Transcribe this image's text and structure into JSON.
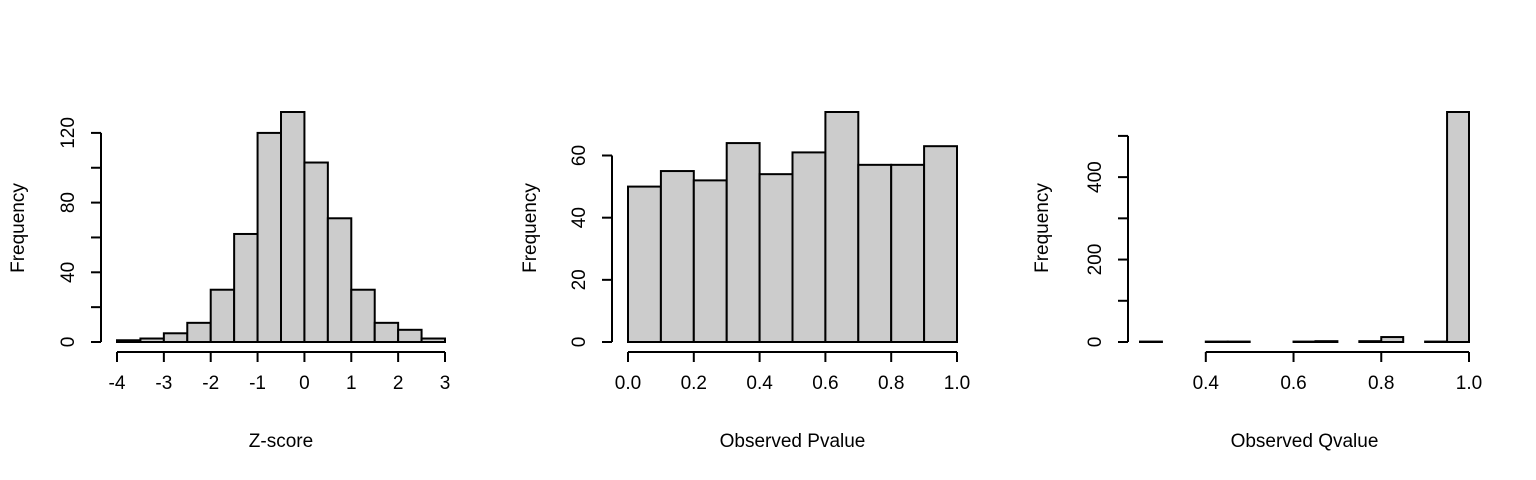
{
  "chart_data": [
    {
      "type": "bar",
      "title": "",
      "xlabel": "Z-score",
      "ylabel": "Frequency",
      "bin_edges": [
        -4,
        -3.5,
        -3,
        -2.5,
        -2,
        -1.5,
        -1,
        -0.5,
        0,
        0.5,
        1,
        1.5,
        2,
        2.5,
        3
      ],
      "values": [
        1,
        2,
        5,
        11,
        30,
        62,
        120,
        132,
        103,
        71,
        30,
        11,
        7,
        2
      ],
      "xlim": [
        -4,
        3
      ],
      "ylim": [
        0,
        132
      ],
      "xticks": [
        -4,
        -3,
        -2,
        -1,
        0,
        1,
        2,
        3
      ],
      "xtick_labels": [
        "-4",
        "-3",
        "-2",
        "-1",
        "0",
        "1",
        "2",
        "3"
      ],
      "yticks": [
        0,
        20,
        40,
        60,
        80,
        100,
        120
      ],
      "ytick_labels": [
        "0",
        "",
        "40",
        "",
        "80",
        "",
        "120"
      ],
      "bar_color": "#cccccc",
      "grid": false
    },
    {
      "type": "bar",
      "title": "",
      "xlabel": "Observed Pvalue",
      "ylabel": "Frequency",
      "bin_edges": [
        0,
        0.1,
        0.2,
        0.3,
        0.4,
        0.5,
        0.6,
        0.7,
        0.8,
        0.9,
        1.0
      ],
      "values": [
        50,
        55,
        52,
        64,
        54,
        61,
        74,
        57,
        57,
        63
      ],
      "xlim": [
        0,
        1
      ],
      "ylim": [
        0,
        74
      ],
      "xticks": [
        0,
        0.2,
        0.4,
        0.6,
        0.8,
        1.0
      ],
      "xtick_labels": [
        "0.0",
        "0.2",
        "0.4",
        "0.6",
        "0.8",
        "1.0"
      ],
      "yticks": [
        0,
        20,
        40,
        60
      ],
      "ytick_labels": [
        "0",
        "20",
        "40",
        "60"
      ],
      "bar_color": "#cccccc",
      "grid": false
    },
    {
      "type": "bar",
      "title": "",
      "xlabel": "Observed Qvalue",
      "ylabel": "Frequency",
      "bin_edges": [
        0.25,
        0.3,
        0.35,
        0.4,
        0.45,
        0.5,
        0.55,
        0.6,
        0.65,
        0.7,
        0.75,
        0.8,
        0.85,
        0.9,
        0.95,
        1.0
      ],
      "values": [
        1,
        0,
        0,
        1,
        1,
        0,
        0,
        1,
        2,
        0,
        2,
        12,
        0,
        1,
        558
      ],
      "xlim": [
        0.25,
        1.0
      ],
      "ylim": [
        0,
        558
      ],
      "xticks": [
        0.4,
        0.6,
        0.8,
        1.0
      ],
      "xtick_labels": [
        "0.4",
        "0.6",
        "0.8",
        "1.0"
      ],
      "yticks": [
        0,
        100,
        200,
        300,
        400,
        500
      ],
      "ytick_labels": [
        "0",
        "",
        "200",
        "",
        "400",
        ""
      ],
      "bar_color": "#cccccc",
      "grid": false
    }
  ]
}
